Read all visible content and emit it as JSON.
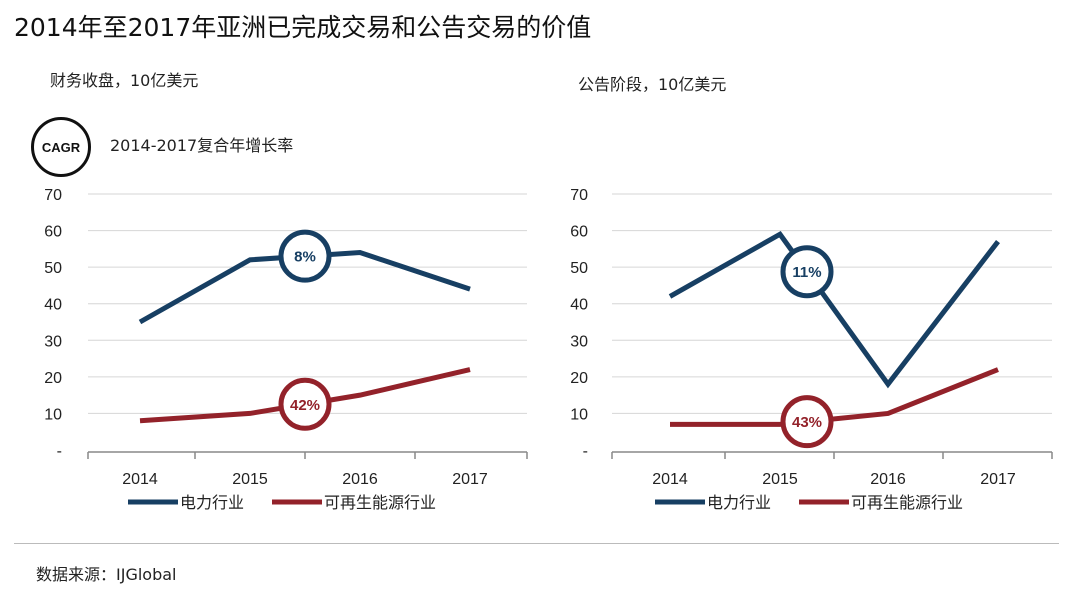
{
  "title": "2014年至2017年亚洲已完成交易和公告交易的价值",
  "cagr_badge": "CAGR",
  "cagr_label": "2014-2017复合年增长率",
  "source": "数据来源：IJGlobal",
  "colors": {
    "power": "#173f63",
    "renewable": "#93222a",
    "grid": "#d6d6d6",
    "axis": "#888888"
  },
  "chart_data": [
    {
      "type": "line",
      "subtitle": "财务收盘，10亿美元",
      "categories": [
        "2014",
        "2015",
        "2016",
        "2017"
      ],
      "y_ticks": [
        "-",
        "10",
        "20",
        "30",
        "40",
        "50",
        "60",
        "70"
      ],
      "ylim": [
        0,
        70
      ],
      "grid": true,
      "legend_position": "bottom",
      "series": [
        {
          "name": "电力行业",
          "values": [
            35,
            52,
            54,
            44
          ],
          "cagr_label": "8%",
          "cagr_at": 1.5
        },
        {
          "name": "可再生能源行业",
          "values": [
            8,
            10,
            15,
            22
          ],
          "cagr_label": "42%",
          "cagr_at": 1.5
        }
      ]
    },
    {
      "type": "line",
      "subtitle": "公告阶段，10亿美元",
      "categories": [
        "2014",
        "2015",
        "2016",
        "2017"
      ],
      "y_ticks": [
        "-",
        "10",
        "20",
        "30",
        "40",
        "50",
        "60",
        "70"
      ],
      "ylim": [
        0,
        70
      ],
      "grid": true,
      "legend_position": "bottom",
      "series": [
        {
          "name": "电力行业",
          "values": [
            42,
            59,
            18,
            57
          ],
          "cagr_label": "11%",
          "cagr_at": 1.25
        },
        {
          "name": "可再生能源行业",
          "values": [
            7,
            7,
            10,
            22
          ],
          "cagr_label": "43%",
          "cagr_at": 1.25
        }
      ]
    }
  ]
}
